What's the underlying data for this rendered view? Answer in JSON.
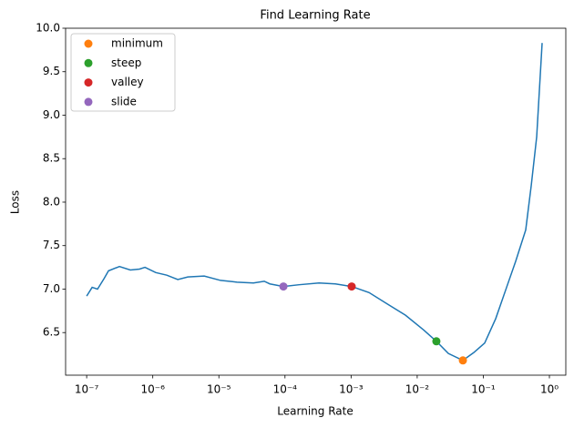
{
  "chart_data": {
    "type": "line",
    "title": "Find Learning Rate",
    "xlabel": "Learning Rate",
    "ylabel": "Loss",
    "xscale": "log",
    "legend_loc": "upper left",
    "color": "#1f77b4",
    "x": [
      1e-07,
      1.21e-07,
      1.46e-07,
      1.83e-07,
      2.14e-07,
      3.13e-07,
      4.58e-07,
      6.3e-07,
      7.62e-07,
      1.11e-06,
      1.63e-06,
      2.39e-06,
      3.39e-06,
      6e-06,
      1.06e-05,
      1.88e-05,
      3.33e-05,
      4.86e-05,
      5.89e-05,
      9.47e-05,
      0.000163,
      0.000327,
      0.000578,
      0.00102,
      0.00187,
      0.00352,
      0.00665,
      0.0125,
      0.0195,
      0.0296,
      0.0491,
      0.0718,
      0.105,
      0.154,
      0.225,
      0.309,
      0.438,
      0.531,
      0.642,
      0.776
    ],
    "values": [
      6.92,
      7.02,
      7.0,
      7.12,
      7.21,
      7.26,
      7.22,
      7.23,
      7.25,
      7.19,
      7.16,
      7.11,
      7.14,
      7.15,
      7.1,
      7.08,
      7.07,
      7.09,
      7.06,
      7.03,
      7.05,
      7.07,
      7.06,
      7.03,
      6.96,
      6.83,
      6.7,
      6.53,
      6.4,
      6.26,
      6.18,
      6.27,
      6.38,
      6.66,
      7.02,
      7.32,
      7.68,
      8.19,
      8.75,
      9.83
    ],
    "points": [
      {
        "name": "minimum",
        "color": "#ff7f0e",
        "x": 0.0491,
        "y": 6.18
      },
      {
        "name": "steep",
        "color": "#2ca02c",
        "x": 0.0195,
        "y": 6.4
      },
      {
        "name": "valley",
        "color": "#d62728",
        "x": 0.00102,
        "y": 7.03
      },
      {
        "name": "slide",
        "color": "#9467bd",
        "x": 9.47e-05,
        "y": 7.03
      }
    ],
    "xlim": [
      4.8e-08,
      1.77
    ],
    "ylim": [
      6.01,
      10.0
    ],
    "xticks": [
      {
        "value": 1e-07,
        "label": "10⁻⁷"
      },
      {
        "value": 1e-06,
        "label": "10⁻⁶"
      },
      {
        "value": 1e-05,
        "label": "10⁻⁵"
      },
      {
        "value": 0.0001,
        "label": "10⁻⁴"
      },
      {
        "value": 0.001,
        "label": "10⁻³"
      },
      {
        "value": 0.01,
        "label": "10⁻²"
      },
      {
        "value": 0.1,
        "label": "10⁻¹"
      },
      {
        "value": 1,
        "label": "10⁰"
      }
    ],
    "yticks": [
      6.5,
      {
        "value": 7,
        "label": "7.0"
      },
      7.5,
      {
        "value": 8,
        "label": "8.0"
      },
      8.5,
      {
        "value": 9,
        "label": "9.0"
      },
      9.5,
      {
        "value": 10,
        "label": "10.0"
      }
    ]
  }
}
